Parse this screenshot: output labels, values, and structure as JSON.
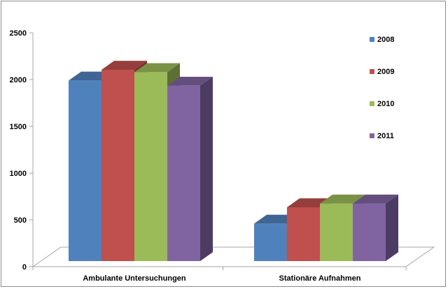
{
  "chart_data": {
    "type": "bar",
    "title": "",
    "xlabel": "",
    "ylabel": "",
    "categories": [
      "Ambulante Untersuchungen",
      "Stationäre Aufnahmen"
    ],
    "series": [
      {
        "name": "2008",
        "values": [
          1930,
          400
        ],
        "color": "#4f81bd"
      },
      {
        "name": "2009",
        "values": [
          2045,
          575
        ],
        "color": "#c0504d"
      },
      {
        "name": "2010",
        "values": [
          2020,
          615
        ],
        "color": "#9bbb59"
      },
      {
        "name": "2011",
        "values": [
          1875,
          615
        ],
        "color": "#8064a2"
      }
    ],
    "ylim": [
      0,
      2500
    ],
    "yticks": [
      0,
      500,
      1000,
      1500,
      2000,
      2500
    ],
    "legend_position": "right",
    "style_3d": true,
    "grid": false
  }
}
